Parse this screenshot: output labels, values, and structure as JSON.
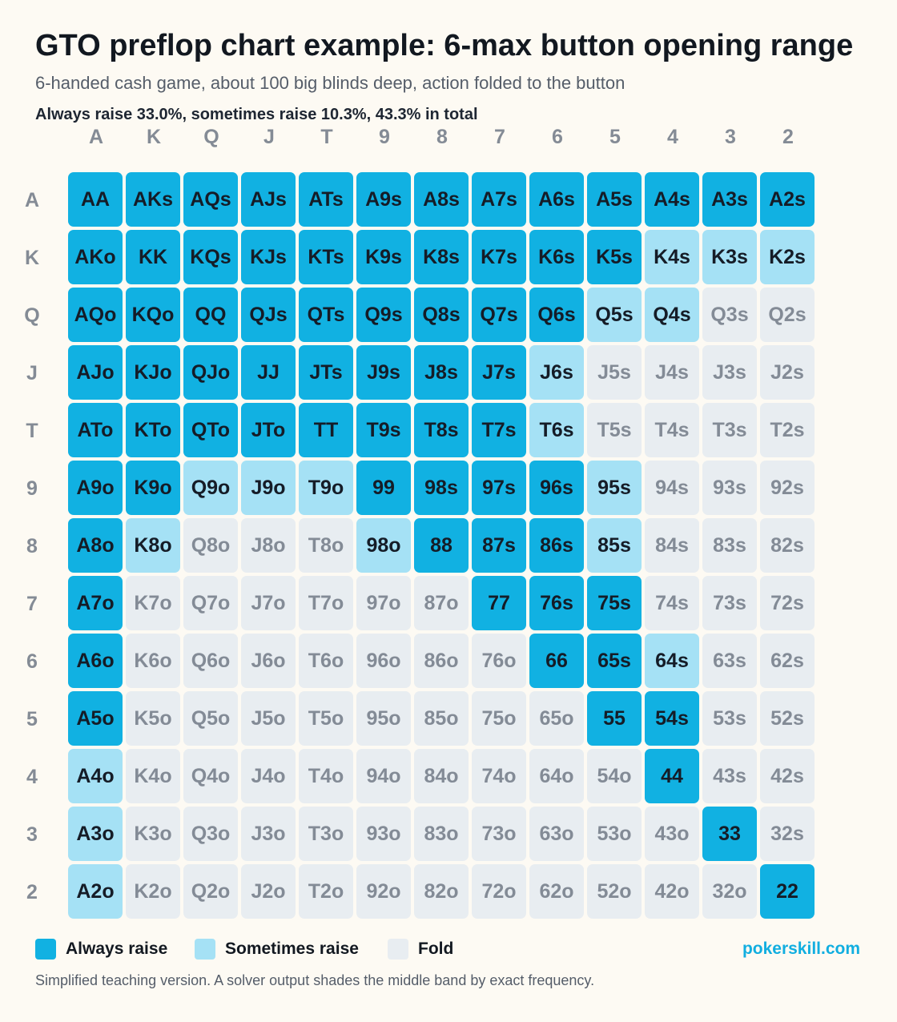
{
  "header": {
    "title": "GTO preflop chart example: 6-max button opening range",
    "subtitle": "6-handed cash game, about 100 big blinds deep, action folded to the button",
    "summary": "Always raise 33.0%, sometimes raise 10.3%, 43.3% in total"
  },
  "colors": {
    "always_raise": "#11b1e2",
    "sometimes_raise": "#a5e1f5",
    "fold": "#e8edf1",
    "text_dark": "#151c27",
    "text_muted": "#838b96",
    "brand": "#11aee0"
  },
  "chart_data": {
    "type": "heatmap",
    "title": "GTO preflop chart example: 6-max button opening range",
    "columns": [
      "A",
      "K",
      "Q",
      "J",
      "T",
      "9",
      "8",
      "7",
      "6",
      "5",
      "4",
      "3",
      "2"
    ],
    "rows": [
      "A",
      "K",
      "Q",
      "J",
      "T",
      "9",
      "8",
      "7",
      "6",
      "5",
      "4",
      "3",
      "2"
    ],
    "actions": {
      "R": "Always raise",
      "S": "Sometimes raise",
      "F": "Fold"
    },
    "cells": [
      [
        "AA",
        "AKs",
        "AQs",
        "AJs",
        "ATs",
        "A9s",
        "A8s",
        "A7s",
        "A6s",
        "A5s",
        "A4s",
        "A3s",
        "A2s"
      ],
      [
        "AKo",
        "KK",
        "KQs",
        "KJs",
        "KTs",
        "K9s",
        "K8s",
        "K7s",
        "K6s",
        "K5s",
        "K4s",
        "K3s",
        "K2s"
      ],
      [
        "AQo",
        "KQo",
        "QQ",
        "QJs",
        "QTs",
        "Q9s",
        "Q8s",
        "Q7s",
        "Q6s",
        "Q5s",
        "Q4s",
        "Q3s",
        "Q2s"
      ],
      [
        "AJo",
        "KJo",
        "QJo",
        "JJ",
        "JTs",
        "J9s",
        "J8s",
        "J7s",
        "J6s",
        "J5s",
        "J4s",
        "J3s",
        "J2s"
      ],
      [
        "ATo",
        "KTo",
        "QTo",
        "JTo",
        "TT",
        "T9s",
        "T8s",
        "T7s",
        "T6s",
        "T5s",
        "T4s",
        "T3s",
        "T2s"
      ],
      [
        "A9o",
        "K9o",
        "Q9o",
        "J9o",
        "T9o",
        "99",
        "98s",
        "97s",
        "96s",
        "95s",
        "94s",
        "93s",
        "92s"
      ],
      [
        "A8o",
        "K8o",
        "Q8o",
        "J8o",
        "T8o",
        "98o",
        "88",
        "87s",
        "86s",
        "85s",
        "84s",
        "83s",
        "82s"
      ],
      [
        "A7o",
        "K7o",
        "Q7o",
        "J7o",
        "T7o",
        "97o",
        "87o",
        "77",
        "76s",
        "75s",
        "74s",
        "73s",
        "72s"
      ],
      [
        "A6o",
        "K6o",
        "Q6o",
        "J6o",
        "T6o",
        "96o",
        "86o",
        "76o",
        "66",
        "65s",
        "64s",
        "63s",
        "62s"
      ],
      [
        "A5o",
        "K5o",
        "Q5o",
        "J5o",
        "T5o",
        "95o",
        "85o",
        "75o",
        "65o",
        "55",
        "54s",
        "53s",
        "52s"
      ],
      [
        "A4o",
        "K4o",
        "Q4o",
        "J4o",
        "T4o",
        "94o",
        "84o",
        "74o",
        "64o",
        "54o",
        "44",
        "43s",
        "42s"
      ],
      [
        "A3o",
        "K3o",
        "Q3o",
        "J3o",
        "T3o",
        "93o",
        "83o",
        "73o",
        "63o",
        "53o",
        "43o",
        "33",
        "32s"
      ],
      [
        "A2o",
        "K2o",
        "Q2o",
        "J2o",
        "T2o",
        "92o",
        "82o",
        "72o",
        "62o",
        "52o",
        "42o",
        "32o",
        "22"
      ]
    ],
    "values": [
      [
        "R",
        "R",
        "R",
        "R",
        "R",
        "R",
        "R",
        "R",
        "R",
        "R",
        "R",
        "R",
        "R"
      ],
      [
        "R",
        "R",
        "R",
        "R",
        "R",
        "R",
        "R",
        "R",
        "R",
        "R",
        "S",
        "S",
        "S"
      ],
      [
        "R",
        "R",
        "R",
        "R",
        "R",
        "R",
        "R",
        "R",
        "R",
        "S",
        "S",
        "F",
        "F"
      ],
      [
        "R",
        "R",
        "R",
        "R",
        "R",
        "R",
        "R",
        "R",
        "S",
        "F",
        "F",
        "F",
        "F"
      ],
      [
        "R",
        "R",
        "R",
        "R",
        "R",
        "R",
        "R",
        "R",
        "S",
        "F",
        "F",
        "F",
        "F"
      ],
      [
        "R",
        "R",
        "S",
        "S",
        "S",
        "R",
        "R",
        "R",
        "R",
        "S",
        "F",
        "F",
        "F"
      ],
      [
        "R",
        "S",
        "F",
        "F",
        "F",
        "S",
        "R",
        "R",
        "R",
        "S",
        "F",
        "F",
        "F"
      ],
      [
        "R",
        "F",
        "F",
        "F",
        "F",
        "F",
        "F",
        "R",
        "R",
        "R",
        "F",
        "F",
        "F"
      ],
      [
        "R",
        "F",
        "F",
        "F",
        "F",
        "F",
        "F",
        "F",
        "R",
        "R",
        "S",
        "F",
        "F"
      ],
      [
        "R",
        "F",
        "F",
        "F",
        "F",
        "F",
        "F",
        "F",
        "F",
        "R",
        "R",
        "F",
        "F"
      ],
      [
        "S",
        "F",
        "F",
        "F",
        "F",
        "F",
        "F",
        "F",
        "F",
        "F",
        "R",
        "F",
        "F"
      ],
      [
        "S",
        "F",
        "F",
        "F",
        "F",
        "F",
        "F",
        "F",
        "F",
        "F",
        "F",
        "R",
        "F"
      ],
      [
        "S",
        "F",
        "F",
        "F",
        "F",
        "F",
        "F",
        "F",
        "F",
        "F",
        "F",
        "F",
        "R"
      ]
    ],
    "legend": [
      {
        "key": "R",
        "label": "Always raise"
      },
      {
        "key": "S",
        "label": "Sometimes raise"
      },
      {
        "key": "F",
        "label": "Fold"
      }
    ],
    "legend_position": "bottom-left"
  },
  "brand": "pokerskill.com",
  "footnote": "Simplified teaching version. A solver output shades the middle band by exact frequency."
}
